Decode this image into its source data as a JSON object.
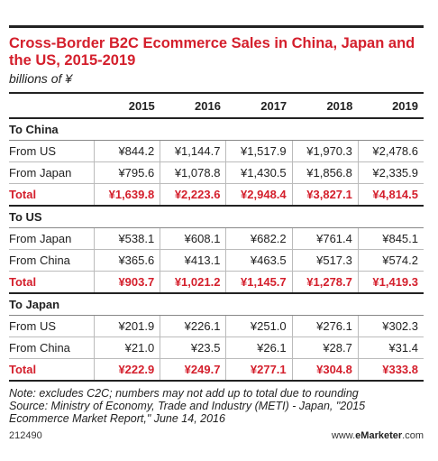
{
  "title": "Cross-Border B2C Ecommerce Sales in China, Japan and the US, 2015-2019",
  "subtitle": "billions of ¥",
  "columns": [
    "",
    "2015",
    "2016",
    "2017",
    "2018",
    "2019"
  ],
  "sections": [
    {
      "name": "To China",
      "rows": [
        {
          "label": "From US",
          "values": [
            "¥844.2",
            "¥1,144.7",
            "¥1,517.9",
            "¥1,970.3",
            "¥2,478.6"
          ]
        },
        {
          "label": "From Japan",
          "values": [
            "¥795.6",
            "¥1,078.8",
            "¥1,430.5",
            "¥1,856.8",
            "¥2,335.9"
          ]
        },
        {
          "label": "Total",
          "values": [
            "¥1,639.8",
            "¥2,223.6",
            "¥2,948.4",
            "¥3,827.1",
            "¥4,814.5"
          ]
        }
      ]
    },
    {
      "name": "To US",
      "rows": [
        {
          "label": "From Japan",
          "values": [
            "¥538.1",
            "¥608.1",
            "¥682.2",
            "¥761.4",
            "¥845.1"
          ]
        },
        {
          "label": "From China",
          "values": [
            "¥365.6",
            "¥413.1",
            "¥463.5",
            "¥517.3",
            "¥574.2"
          ]
        },
        {
          "label": "Total",
          "values": [
            "¥903.7",
            "¥1,021.2",
            "¥1,145.7",
            "¥1,278.7",
            "¥1,419.3"
          ]
        }
      ]
    },
    {
      "name": "To Japan",
      "rows": [
        {
          "label": "From US",
          "values": [
            "¥201.9",
            "¥226.1",
            "¥251.0",
            "¥276.1",
            "¥302.3"
          ]
        },
        {
          "label": "From China",
          "values": [
            "¥21.0",
            "¥23.5",
            "¥26.1",
            "¥28.7",
            "¥31.4"
          ]
        },
        {
          "label": "Total",
          "values": [
            "¥222.9",
            "¥249.7",
            "¥277.1",
            "¥304.8",
            "¥333.8"
          ]
        }
      ]
    }
  ],
  "note": "Note: excludes C2C; numbers may not add up to total due to rounding",
  "source": "Source: Ministry of Economy, Trade and Industry (METI) - Japan, \"2015 Ecommerce Market Report,\" June 14, 2016",
  "chart_id": "212490",
  "brand": {
    "prefix": "www.",
    "name": "eMarketer",
    "suffix": ".com"
  },
  "colors": {
    "accent": "#d41f2c",
    "text": "#222222"
  }
}
